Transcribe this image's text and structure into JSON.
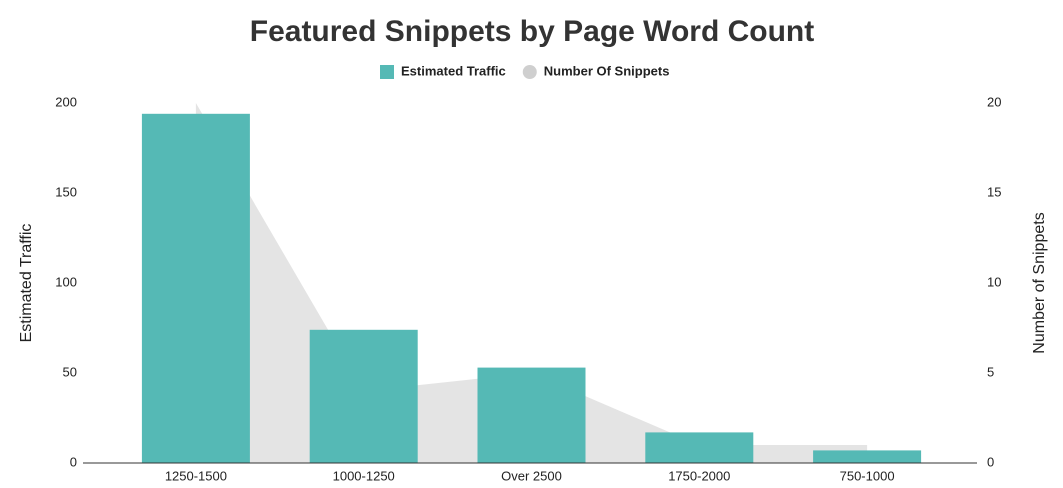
{
  "chart_data": {
    "type": "bar",
    "title": "Featured Snippets by Page Word Count",
    "categories": [
      "1250-1500",
      "1000-1250",
      "Over 2500",
      "1750-2000",
      "750-1000"
    ],
    "series": [
      {
        "name": "Estimated Traffic",
        "type": "bar",
        "color": "#55b9b5",
        "values": [
          194,
          74,
          53,
          17,
          7
        ]
      },
      {
        "name": "Number Of Snippets",
        "type": "area",
        "axis": "y2",
        "color": "#e4e4e4",
        "values": [
          20,
          4,
          5,
          1,
          1
        ]
      }
    ],
    "ylabel": "Estimated Traffic",
    "y2label": "Number of Snippets",
    "ylim": [
      0,
      200
    ],
    "yticks": [
      0,
      50,
      100,
      150,
      200
    ],
    "y2lim": [
      0,
      20
    ],
    "y2ticks": [
      0,
      5,
      10,
      15,
      20
    ],
    "grid": false,
    "legend": "top"
  }
}
